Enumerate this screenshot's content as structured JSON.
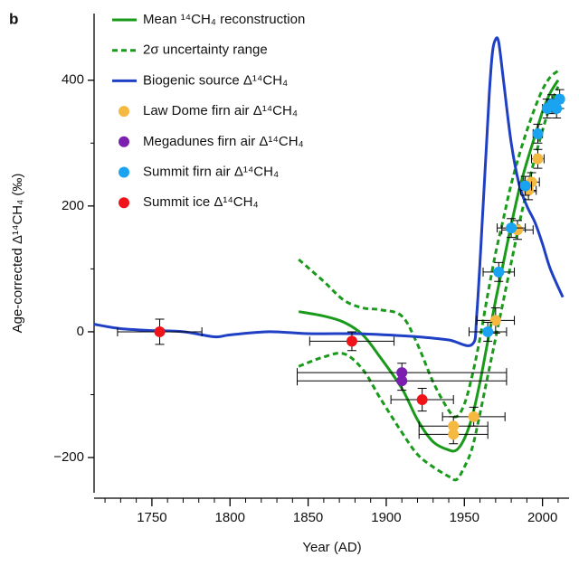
{
  "panel_label": "b",
  "chart_data": {
    "type": "line",
    "xlabel": "Year (AD)",
    "ylabel": "Age-corrected Δ¹⁴CH₄ (‰)",
    "xlim": [
      1713,
      2017
    ],
    "ylim": [
      -256,
      506
    ],
    "xticks": [
      1750,
      1800,
      1850,
      1900,
      1950,
      2000
    ],
    "xminorticks": [
      1720,
      1730,
      1740,
      1760,
      1770,
      1780,
      1790,
      1810,
      1820,
      1830,
      1840,
      1860,
      1870,
      1880,
      1890,
      1910,
      1920,
      1930,
      1940,
      1960,
      1970,
      1980,
      1990,
      2010
    ],
    "yticks": [
      {
        "value": -200,
        "label": "−200"
      },
      0,
      200,
      400
    ],
    "yminorticks": [
      -100,
      100,
      300
    ],
    "legend": "upper-left",
    "series": [
      {
        "type": "line",
        "name": "Mean ¹⁴CH₄ reconstruction",
        "color": "#1a9a1a",
        "style": "solid",
        "x": [
          1844,
          1860,
          1873,
          1885,
          1896,
          1910,
          1920,
          1930,
          1940,
          1945,
          1950,
          1955,
          1960,
          1965,
          1970,
          1975,
          1980,
          1985,
          1990,
          1995,
          2000,
          2005,
          2010
        ],
        "values": [
          32,
          25,
          15,
          -5,
          -40,
          -90,
          -140,
          -175,
          -188,
          -188,
          -170,
          -135,
          -80,
          -15,
          50,
          110,
          170,
          225,
          270,
          310,
          350,
          380,
          400
        ]
      },
      {
        "type": "band",
        "name": "2σ uncertainty range",
        "color": "#1a9a1a",
        "style": "dashed",
        "x": [
          1844,
          1860,
          1873,
          1885,
          1896,
          1910,
          1920,
          1930,
          1940,
          1945,
          1950,
          1955,
          1960,
          1965,
          1970,
          1975,
          1980,
          1985,
          1990,
          1995,
          2000,
          2005,
          2010
        ],
        "upper": [
          115,
          80,
          50,
          38,
          35,
          25,
          -20,
          -80,
          -125,
          -135,
          -115,
          -70,
          -10,
          60,
          125,
          180,
          235,
          280,
          320,
          355,
          385,
          405,
          415
        ],
        "lower": [
          -55,
          -40,
          -35,
          -60,
          -105,
          -160,
          -195,
          -215,
          -230,
          -235,
          -215,
          -185,
          -130,
          -70,
          -10,
          50,
          110,
          170,
          225,
          275,
          320,
          360,
          390
        ]
      },
      {
        "type": "line",
        "name": "Biogenic source Δ¹⁴CH₄",
        "color": "#1f3fc4",
        "style": "solid",
        "x": [
          1713,
          1730,
          1750,
          1770,
          1790,
          1800,
          1825,
          1850,
          1880,
          1900,
          1920,
          1940,
          1955,
          1958,
          1962,
          1966,
          1968,
          1970,
          1972,
          1975,
          1980,
          1985,
          1990,
          1995,
          2000,
          2005,
          2013
        ],
        "values": [
          12,
          5,
          2,
          0,
          -8,
          -5,
          0,
          -3,
          -3,
          -5,
          -8,
          -13,
          -20,
          30,
          200,
          380,
          445,
          465,
          460,
          400,
          300,
          235,
          200,
          175,
          140,
          100,
          55
        ]
      },
      {
        "type": "scatter",
        "name": "Law Dome firn air Δ¹⁴CH₄",
        "color": "#f5b942",
        "x": [
          1943,
          1943,
          1956,
          1970,
          1984,
          1991,
          1993,
          1997
        ],
        "values": [
          -150,
          -163,
          -135,
          18,
          162,
          225,
          238,
          275
        ],
        "xerr": [
          22,
          22,
          20,
          12,
          10,
          5,
          5,
          4
        ],
        "yerr": [
          15,
          15,
          15,
          20,
          15,
          15,
          15,
          15
        ]
      },
      {
        "type": "scatter",
        "name": "Megadunes firn air Δ¹⁴CH₄",
        "color": "#7a1fb0",
        "x": [
          1910,
          1910
        ],
        "values": [
          -65,
          -78
        ],
        "xerr": [
          67,
          67
        ],
        "yerr": [
          15,
          15
        ]
      },
      {
        "type": "scatter",
        "name": "Summit firn air Δ¹⁴CH₄",
        "color": "#1aa3f0",
        "x": [
          1965,
          1972,
          1980,
          1989,
          1997,
          2003,
          2006,
          2009,
          2011
        ],
        "values": [
          0,
          95,
          165,
          232,
          315,
          355,
          362,
          355,
          370
        ],
        "xerr": [
          12,
          10,
          9,
          4,
          3,
          3,
          3,
          2,
          2
        ],
        "yerr": [
          15,
          15,
          15,
          15,
          15,
          15,
          15,
          15,
          15
        ]
      },
      {
        "type": "scatter",
        "name": "Summit ice Δ¹⁴CH₄",
        "color": "#f0141a",
        "x": [
          1755,
          1878,
          1923
        ],
        "values": [
          0,
          -15,
          -108
        ],
        "xerr": [
          27,
          27,
          20
        ],
        "yerr": [
          20,
          15,
          18
        ]
      }
    ]
  }
}
